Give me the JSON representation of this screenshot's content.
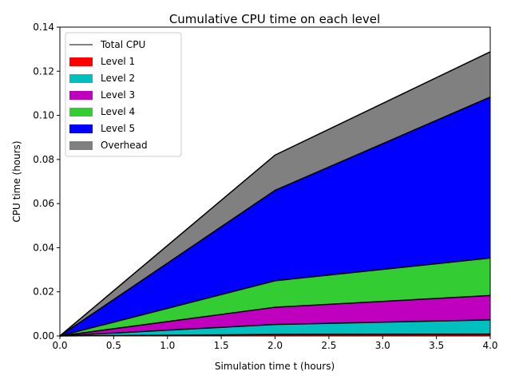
{
  "chart_data": {
    "type": "area",
    "title": "Cumulative CPU time on each level",
    "xlabel": "Simulation time t (hours)",
    "ylabel": "CPU time (hours)",
    "x": [
      0,
      2,
      4
    ],
    "xlim": [
      0,
      4
    ],
    "ylim": [
      0,
      0.14
    ],
    "xticks": [
      "0.0",
      "0.5",
      "1.0",
      "1.5",
      "2.0",
      "2.5",
      "3.0",
      "3.5",
      "4.0"
    ],
    "yticks": [
      "0.00",
      "0.02",
      "0.04",
      "0.06",
      "0.08",
      "0.10",
      "0.12",
      "0.14"
    ],
    "stacked": true,
    "grid": false,
    "legend_position": "top-left",
    "series": [
      {
        "name": "Level 1",
        "color": "#ff0000",
        "values": [
          0,
          0.0007,
          0.0008
        ]
      },
      {
        "name": "Level 2",
        "color": "#00bfbf",
        "values": [
          0,
          0.0045,
          0.0065
        ]
      },
      {
        "name": "Level 3",
        "color": "#bf00bf",
        "values": [
          0,
          0.0078,
          0.011
        ]
      },
      {
        "name": "Level 4",
        "color": "#33cc33",
        "values": [
          0,
          0.012,
          0.017
        ]
      },
      {
        "name": "Level 5",
        "color": "#0000ff",
        "values": [
          0,
          0.041,
          0.073
        ]
      },
      {
        "name": "Overhead",
        "color": "#808080",
        "values": [
          0,
          0.016,
          0.0205
        ]
      }
    ],
    "total": {
      "name": "Total CPU",
      "color": "#000000",
      "values": [
        0,
        0.082,
        0.1288
      ]
    }
  }
}
